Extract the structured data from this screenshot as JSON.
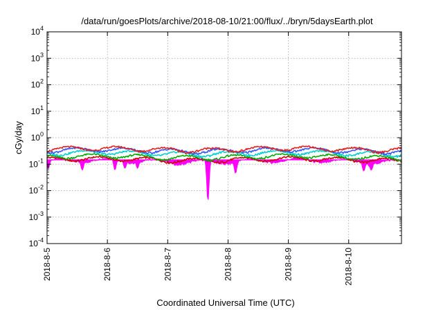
{
  "chart_data": {
    "type": "line",
    "title": "/data/run/goesPlots/archive/2018-08-10/21:00/flux/../bryn/5daysEarth.plot",
    "xlabel": "Coordinated Universal Time (UTC)",
    "ylabel": "cGy/day",
    "y_scale": "log",
    "ylim": [
      0.0001,
      10000
    ],
    "xlim": [
      "2018-08-05",
      "2018-08-10T21:00"
    ],
    "x_ticks": [
      "2018-8-5",
      "2018-8-6",
      "2018-8-7",
      "2018-8-8",
      "2018-8-9",
      "2018-8-10"
    ],
    "y_ticks": [
      {
        "base": "10",
        "exp": "-4"
      },
      {
        "base": "10",
        "exp": "-3"
      },
      {
        "base": "10",
        "exp": "-2"
      },
      {
        "base": "10",
        "exp": "-1"
      },
      {
        "base": "10",
        "exp": "0"
      },
      {
        "base": "10",
        "exp": "1"
      },
      {
        "base": "10",
        "exp": "2"
      },
      {
        "base": "10",
        "exp": "3"
      },
      {
        "base": "10",
        "exp": "4"
      }
    ],
    "grid": true,
    "legend": "none",
    "series": [
      {
        "color": "#ff00ff",
        "style": "fill",
        "baseline": 0.13,
        "dips": [
          {
            "x": "2018-08-05T00:30",
            "y": 0.07
          },
          {
            "x": "2018-08-05T14:00",
            "y": 0.06
          },
          {
            "x": "2018-08-06T03:00",
            "y": 0.06
          },
          {
            "x": "2018-08-06T07:00",
            "y": 0.07
          },
          {
            "x": "2018-08-06T12:00",
            "y": 0.07
          },
          {
            "x": "2018-08-07T04:00",
            "y": 0.09
          },
          {
            "x": "2018-08-07T16:00",
            "y": 0.004
          },
          {
            "x": "2018-08-08T03:00",
            "y": 0.045
          },
          {
            "x": "2018-08-10T06:00",
            "y": 0.055
          },
          {
            "x": "2018-08-10T09:00",
            "y": 0.06
          }
        ]
      },
      {
        "color": "#cc0000",
        "style": "line",
        "baseline": 0.15
      },
      {
        "color": "#00aa00",
        "style": "line",
        "baseline": 0.19
      },
      {
        "color": "#00d0d0",
        "style": "line",
        "baseline": 0.26
      },
      {
        "color": "#3355ff",
        "style": "line",
        "baseline": 0.33
      },
      {
        "color": "#e02020",
        "style": "line",
        "baseline": 0.37
      }
    ]
  }
}
